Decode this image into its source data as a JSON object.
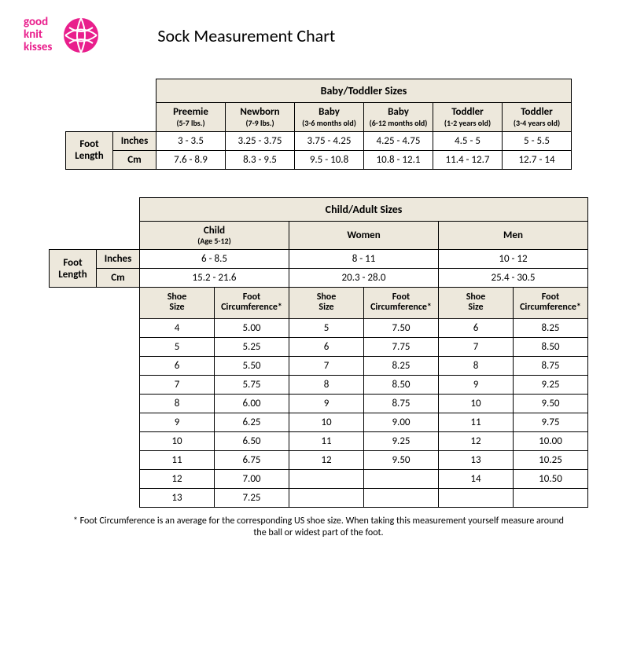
{
  "brand": {
    "line1": "good",
    "line2": "knit",
    "line3": "kisses",
    "color": "#e91e8c"
  },
  "title": "Sock Measurement Chart",
  "table1": {
    "group_title": "Baby/Toddler Sizes",
    "side_label": "Foot Length",
    "units": [
      "Inches",
      "Cm"
    ],
    "columns": [
      {
        "title": "Preemie",
        "sub": "(5-7 lbs.)"
      },
      {
        "title": "Newborn",
        "sub": "(7-9 lbs.)"
      },
      {
        "title": "Baby",
        "sub": "(3-6 months old)"
      },
      {
        "title": "Baby",
        "sub": "(6-12 months old)"
      },
      {
        "title": "Toddler",
        "sub": "(1-2 years old)"
      },
      {
        "title": "Toddler",
        "sub": "(3-4 years old)"
      }
    ],
    "rows": [
      [
        "3 - 3.5",
        "3.25 - 3.75",
        "3.75 - 4.25",
        "4.25 - 4.75",
        "4.5 - 5",
        "5 - 5.5"
      ],
      [
        "7.6 - 8.9",
        "8.3 - 9.5",
        "9.5 - 10.8",
        "10.8 - 12.1",
        "11.4 - 12.7",
        "12.7 - 14"
      ]
    ]
  },
  "table2": {
    "group_title": "Child/Adult Sizes",
    "side_label": "Foot Length",
    "units": [
      "Inches",
      "Cm"
    ],
    "groups": [
      {
        "title": "Child",
        "sub": "(Age 5-12)"
      },
      {
        "title": "Women",
        "sub": ""
      },
      {
        "title": "Men",
        "sub": ""
      }
    ],
    "length_rows": [
      [
        "6 - 8.5",
        "8 - 11",
        "10 - 12"
      ],
      [
        "15.2 - 21.6",
        "20.3 - 28.0",
        "25.4 - 30.5"
      ]
    ],
    "sub_cols": [
      "Shoe Size",
      "Foot Circumference*"
    ],
    "data": [
      [
        "4",
        "5.00",
        "5",
        "7.50",
        "6",
        "8.25"
      ],
      [
        "5",
        "5.25",
        "6",
        "7.75",
        "7",
        "8.50"
      ],
      [
        "6",
        "5.50",
        "7",
        "8.25",
        "8",
        "8.75"
      ],
      [
        "7",
        "5.75",
        "8",
        "8.50",
        "9",
        "9.25"
      ],
      [
        "8",
        "6.00",
        "9",
        "8.75",
        "10",
        "9.50"
      ],
      [
        "9",
        "6.25",
        "10",
        "9.00",
        "11",
        "9.75"
      ],
      [
        "10",
        "6.50",
        "11",
        "9.25",
        "12",
        "10.00"
      ],
      [
        "11",
        "6.75",
        "12",
        "9.50",
        "13",
        "10.25"
      ],
      [
        "12",
        "7.00",
        "",
        "",
        "14",
        "10.50"
      ],
      [
        "13",
        "7.25",
        "",
        "",
        "",
        ""
      ]
    ]
  },
  "footnote": "* Foot Circumference is an average for the corresponding US shoe size.  When taking this measurement yourself measure around the ball or widest part of the foot."
}
